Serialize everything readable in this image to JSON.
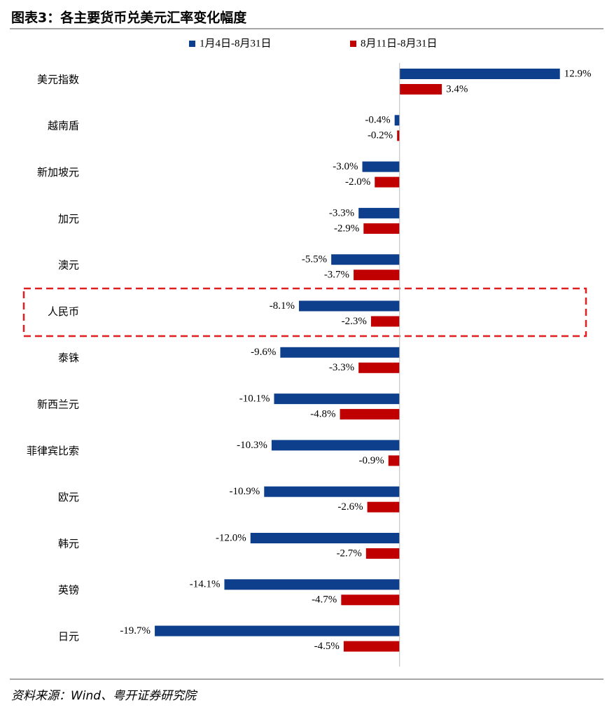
{
  "chart_data": {
    "type": "hbar",
    "title": "图表3：各主要货币兑美元汇率变化幅度",
    "source": "资料来源：Wind、粤开证券研究院",
    "categories": [
      "美元指数",
      "越南盾",
      "新加坡元",
      "加元",
      "澳元",
      "人民币",
      "泰铢",
      "新西兰元",
      "菲律宾比索",
      "欧元",
      "韩元",
      "英镑",
      "日元"
    ],
    "series": [
      {
        "name": "1月4日-8月31日",
        "color": "#0e3f8c",
        "values": [
          12.9,
          -0.4,
          -3.0,
          -3.3,
          -5.5,
          -8.1,
          -9.6,
          -10.1,
          -10.3,
          -10.9,
          -12.0,
          -14.1,
          -19.7
        ],
        "value_labels": [
          "12.9%",
          "-0.4%",
          "-3.0%",
          "-3.3%",
          "-5.5%",
          "-8.1%",
          "-9.6%",
          "-10.1%",
          "-10.3%",
          "-10.9%",
          "-12.0%",
          "-14.1%",
          "-19.7%"
        ]
      },
      {
        "name": "8月11日-8月31日",
        "color": "#c00000",
        "values": [
          3.4,
          -0.2,
          -2.0,
          -2.9,
          -3.7,
          -2.3,
          -3.3,
          -4.8,
          -0.9,
          -2.6,
          -2.7,
          -4.7,
          -4.5
        ],
        "value_labels": [
          "3.4%",
          "-0.2%",
          "-2.0%",
          "-2.9%",
          "-3.7%",
          "-2.3%",
          "-3.3%",
          "-4.8%",
          "-0.9%",
          "-2.6%",
          "-2.7%",
          "-4.7%",
          "-4.5%"
        ]
      }
    ],
    "xlim": [
      -25,
      15
    ]
  }
}
